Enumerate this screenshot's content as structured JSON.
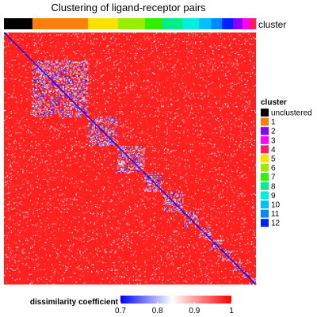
{
  "chart_data": {
    "type": "heatmap",
    "title": "Clustering of ligand-receptor pairs",
    "cluster_annotation_label": "cluster",
    "legend": {
      "title": "cluster",
      "entries": [
        {
          "label": "unclustered",
          "color": "#000000"
        },
        {
          "label": "1",
          "color": "#ff7f0e"
        },
        {
          "label": "2",
          "color": "#8800ff"
        },
        {
          "label": "3",
          "color": "#ff00ff"
        },
        {
          "label": "4",
          "color": "#ff1a66"
        },
        {
          "label": "5",
          "color": "#ffe000"
        },
        {
          "label": "6",
          "color": "#99ee00"
        },
        {
          "label": "7",
          "color": "#33ee00"
        },
        {
          "label": "8",
          "color": "#00ee88"
        },
        {
          "label": "9",
          "color": "#00eedd"
        },
        {
          "label": "10",
          "color": "#00c0ff"
        },
        {
          "label": "11",
          "color": "#0088ff"
        },
        {
          "label": "12",
          "color": "#0022ff"
        }
      ]
    },
    "cluster_order": [
      "unclustered",
      "1",
      "5",
      "6",
      "7",
      "8",
      "9",
      "10",
      "11",
      "12",
      "2",
      "3",
      "4"
    ],
    "cluster_fractions": [
      0.105,
      0.205,
      0.11,
      0.1,
      0.065,
      0.075,
      0.06,
      0.045,
      0.04,
      0.04,
      0.035,
      0.025,
      0.025
    ],
    "colorbar": {
      "title": "dissimilarity coefficient",
      "min": 0.7,
      "max": 1.0,
      "ticks": [
        "0.7",
        "0.8",
        "0.9",
        "1"
      ],
      "tick_values": [
        0.7,
        0.8,
        0.9,
        1.0
      ],
      "colors": [
        "#0000ff",
        "#ffffff",
        "#ff0000"
      ],
      "color_stops": [
        0.7,
        0.84,
        1.0
      ]
    },
    "matrix_rows": 260,
    "diagonal_value": 0.7,
    "background_value": 0.98
  }
}
